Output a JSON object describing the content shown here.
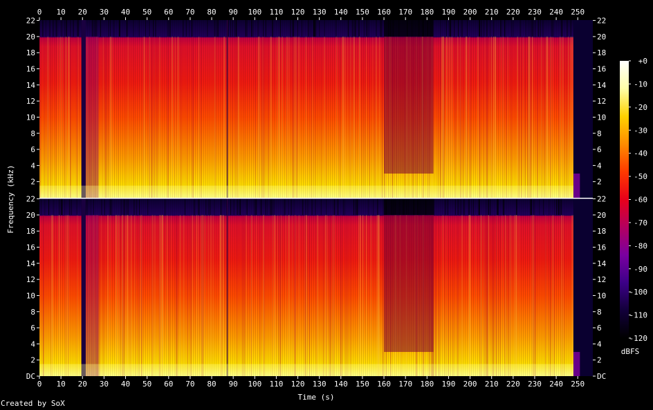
{
  "chart_data": {
    "type": "heatmap",
    "title": "",
    "xlabel": "Time (s)",
    "ylabel": "Frequency (kHz)",
    "xlim": [
      0,
      257
    ],
    "ylim": [
      0,
      22.05
    ],
    "x_ticks": [
      "0",
      "10",
      "20",
      "30",
      "40",
      "50",
      "60",
      "70",
      "80",
      "90",
      "100",
      "110",
      "120",
      "130",
      "140",
      "150",
      "160",
      "170",
      "180",
      "190",
      "200",
      "210",
      "220",
      "230",
      "240",
      "250"
    ],
    "y_ticks": [
      "DC",
      "2",
      "4",
      "6",
      "8",
      "10",
      "12",
      "14",
      "16",
      "18",
      "20",
      "22"
    ],
    "channels": [
      {
        "name": "",
        "shared_axis_top_label": "22"
      },
      {
        "name": "",
        "shared_axis_top_label": "22"
      }
    ],
    "spectral_features": {
      "lowpass_cutoff_khz": 20,
      "silence_gap_s": [
        19.5,
        21.5
      ],
      "quiet_section_s": [
        160,
        183
      ],
      "dark_transient_s": [
        87
      ],
      "end_fade_s": [
        248,
        257
      ]
    },
    "colorbar": {
      "label": "dBFS",
      "min": -120,
      "max": 0,
      "ticks": [
        "+0",
        "-10",
        "-20",
        "-30",
        "-40",
        "-50",
        "-60",
        "-70",
        "-80",
        "-90",
        "-100",
        "-110",
        "-120"
      ],
      "colors": [
        "#000000",
        "#12003a",
        "#3c0088",
        "#7a00a0",
        "#b40060",
        "#e8001a",
        "#ff3a00",
        "#ff8c00",
        "#ffd200",
        "#ffffa8",
        "#ffffff"
      ]
    },
    "credit": "Created by SoX"
  }
}
